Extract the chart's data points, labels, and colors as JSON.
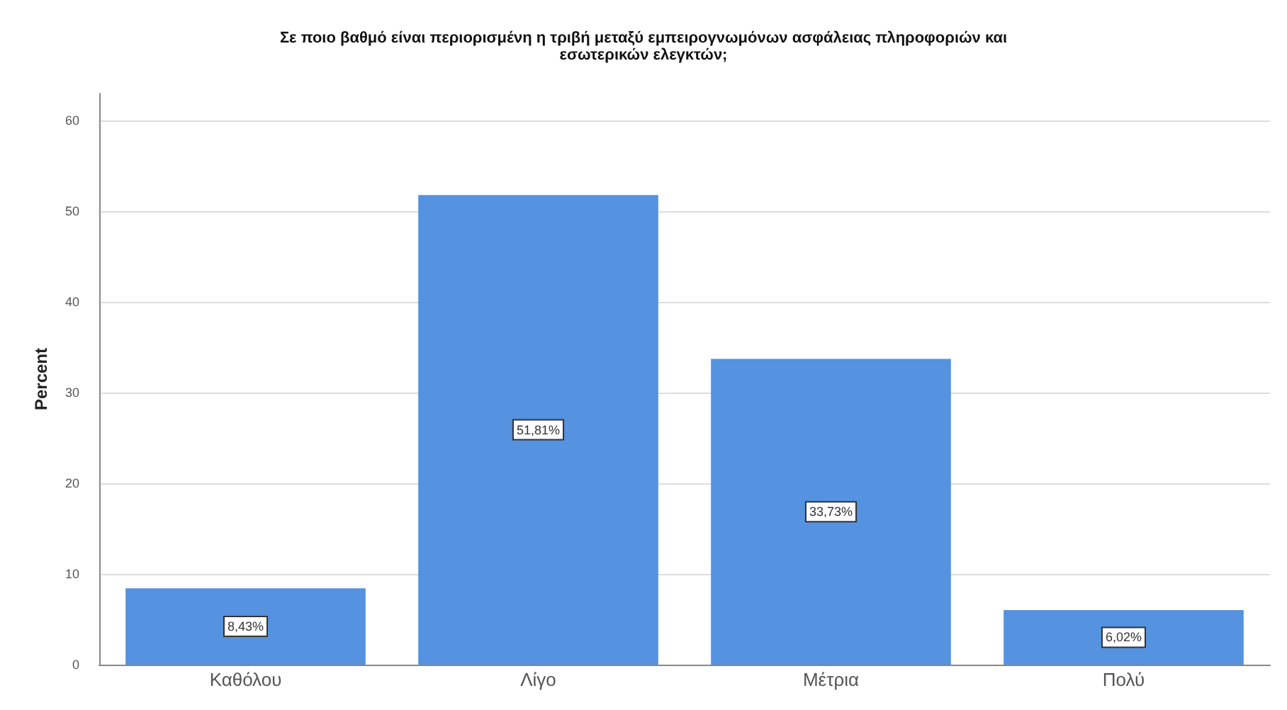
{
  "chart_data": {
    "type": "bar",
    "title": "Σε ποιο βαθμό είναι περιορισμένη η τριβή μεταξύ εμπειρογνωμόνων ασφάλειας πληροφοριών και\nεσωτερικών ελεγκτών;",
    "ylabel": "Percent",
    "categories": [
      "Καθόλου",
      "Λίγο",
      "Μέτρια",
      "Πολύ"
    ],
    "values": [
      8.43,
      51.81,
      33.73,
      6.02
    ],
    "value_labels": [
      "8,43%",
      "51,81%",
      "33,73%",
      "6,02%"
    ],
    "color": "#5592e0",
    "ylim": [
      0,
      63
    ],
    "yticks": [
      0,
      10,
      20,
      30,
      40,
      50,
      60
    ],
    "grid": "y"
  }
}
